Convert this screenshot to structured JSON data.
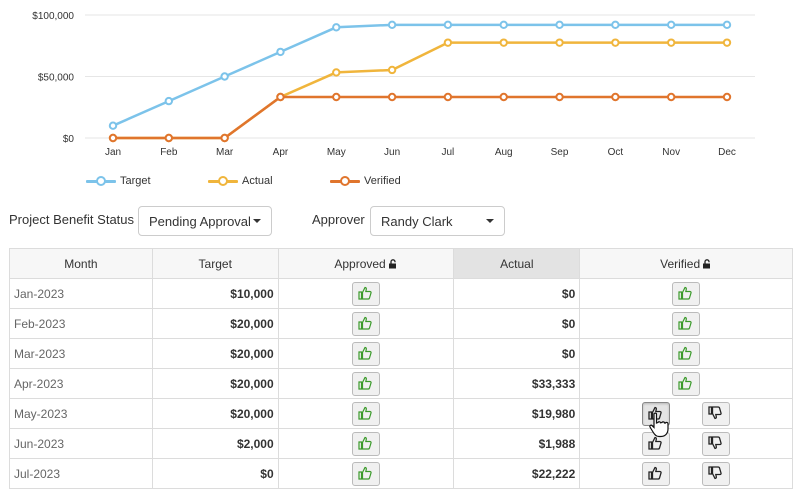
{
  "chart_data": {
    "type": "line",
    "categories": [
      "Jan",
      "Feb",
      "Mar",
      "Apr",
      "May",
      "Jun",
      "Jul",
      "Aug",
      "Sep",
      "Oct",
      "Nov",
      "Dec"
    ],
    "ylim": [
      0,
      100000
    ],
    "yticks": [
      "$0",
      "$50,000",
      "$100,000"
    ],
    "ytick_values": [
      0,
      50000,
      100000
    ],
    "grid": "horizontal",
    "legend_position": "bottom-left",
    "series": [
      {
        "name": "Target",
        "color": "#7cc3ea",
        "values": [
          10000,
          30000,
          50000,
          70000,
          90000,
          92000,
          92000,
          92000,
          92000,
          92000,
          92000,
          92000
        ]
      },
      {
        "name": "Actual",
        "color": "#f0b53c",
        "values": [
          0,
          0,
          0,
          33333,
          53313,
          55301,
          77523,
          77523,
          77523,
          77523,
          77523,
          77523
        ]
      },
      {
        "name": "Verified",
        "color": "#e0752d",
        "values": [
          0,
          0,
          0,
          33333,
          33333,
          33333,
          33333,
          33333,
          33333,
          33333,
          33333,
          33333
        ]
      }
    ]
  },
  "filters": {
    "status_label": "Project Benefit Status",
    "status_value": "Pending Approval",
    "approver_label": "Approver",
    "approver_value": "Randy Clark"
  },
  "table": {
    "headers": {
      "month": "Month",
      "target": "Target",
      "approved": "Approved",
      "actual": "Actual",
      "verified": "Verified"
    },
    "rows": [
      {
        "month": "Jan-2023",
        "target": "$10,000",
        "actual": "$0"
      },
      {
        "month": "Feb-2023",
        "target": "$20,000",
        "actual": "$0"
      },
      {
        "month": "Mar-2023",
        "target": "$20,000",
        "actual": "$0"
      },
      {
        "month": "Apr-2023",
        "target": "$20,000",
        "actual": "$33,333"
      },
      {
        "month": "May-2023",
        "target": "$20,000",
        "actual": "$19,980"
      },
      {
        "month": "Jun-2023",
        "target": "$2,000",
        "actual": "$1,988"
      },
      {
        "month": "Jul-2023",
        "target": "$0",
        "actual": "$22,222"
      }
    ]
  },
  "icons": {
    "thumbs_up_green": "thumbs-up-icon",
    "thumbs_up_dark": "thumbs-up-icon",
    "thumbs_down": "thumbs-down-icon",
    "lock": "unlock-icon",
    "cursor": "hand-pointer-icon"
  },
  "colors": {
    "approve_green": "#3a9a2a",
    "grid": "#e6e6e6"
  }
}
